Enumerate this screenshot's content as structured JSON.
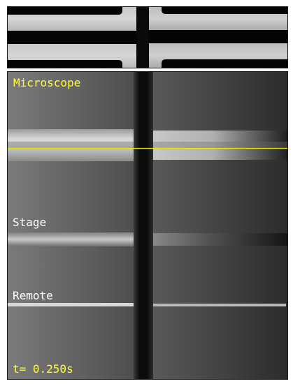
{
  "labels": {
    "microscope": "Microscope",
    "stage": "Stage",
    "remote": "Remote",
    "time": "t= 0.250s"
  },
  "colors": {
    "annotation_yellow": "#ffff33",
    "annotation_white": "#ffffff",
    "marker_line": "#e6e600"
  }
}
